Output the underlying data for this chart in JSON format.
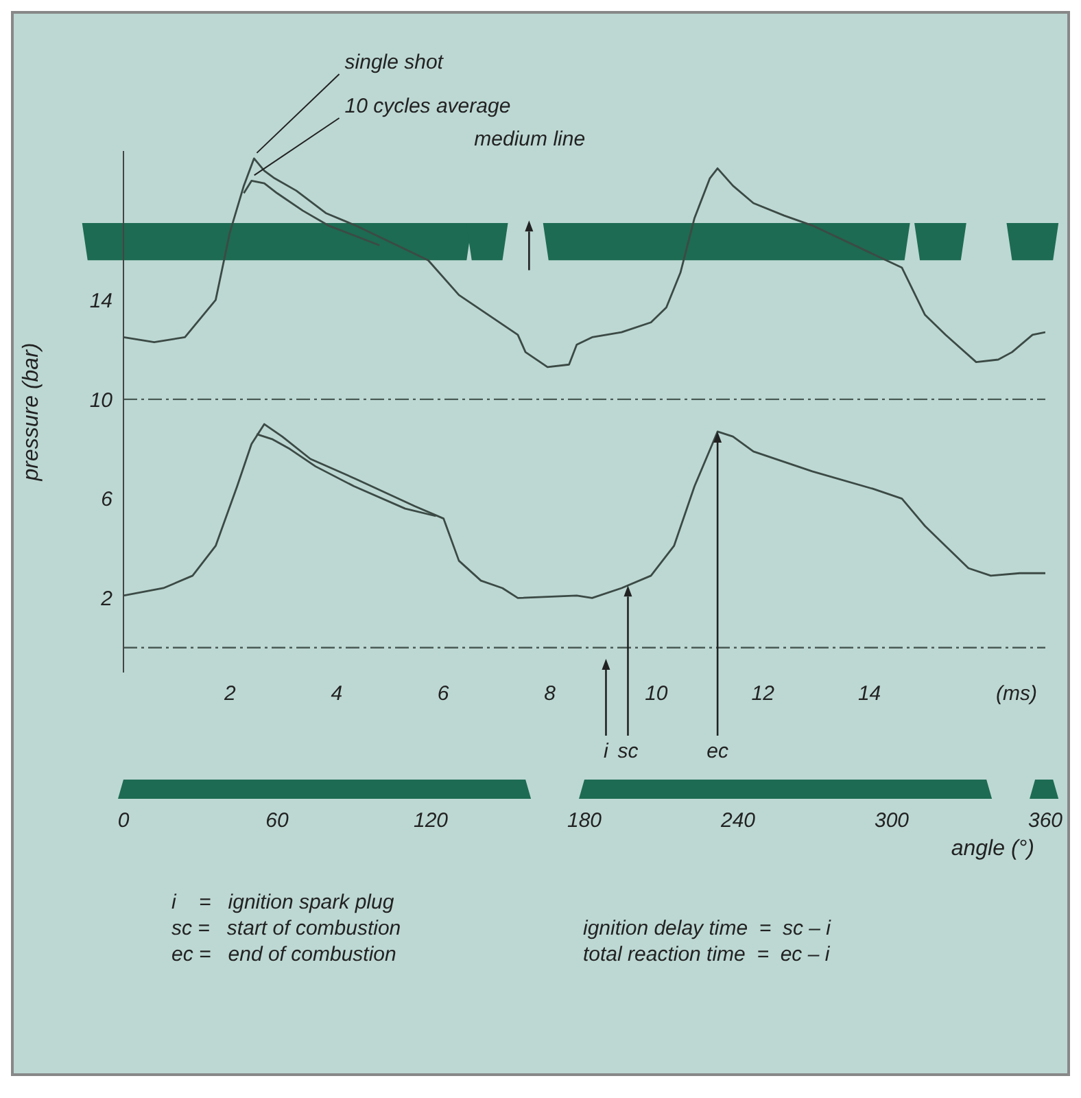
{
  "chart_data": {
    "type": "line",
    "ylabel": "pressure (bar)",
    "xlabel": "angle (°)",
    "x2label": "(ms)",
    "xlim": [
      0,
      360
    ],
    "xticks": [
      0,
      60,
      120,
      180,
      240,
      300,
      360
    ],
    "x2lim": [
      0,
      17.3
    ],
    "x2ticks": [
      2,
      4,
      6,
      8,
      10,
      12,
      14
    ],
    "ylim": [
      -1,
      20
    ],
    "yticks": [
      14,
      10,
      6,
      2
    ],
    "grid": false,
    "legend": false,
    "marker": "none",
    "line_style": "solid",
    "ref_lines": [
      {
        "axis": "y",
        "value": 10,
        "line_style": "dashed",
        "color": "#4a5a55"
      },
      {
        "axis": "y",
        "value": 0,
        "line_style": "dashed",
        "color": "#4a5a55"
      }
    ],
    "series": [
      {
        "name": "single shot",
        "color": "#3c4a45",
        "x": [
          0,
          12,
          24,
          36,
          41.5,
          47,
          51,
          55,
          59,
          67.5,
          79,
          90.6,
          119,
          131,
          142.5,
          154,
          157,
          165.6,
          174,
          177,
          183,
          194.5,
          206,
          212,
          217.5,
          223,
          229,
          232,
          238,
          246,
          258,
          269,
          304,
          313,
          321,
          333,
          341.6,
          347,
          355,
          360
        ],
        "values": [
          12.5,
          12.3,
          12.5,
          14.0,
          16.7,
          18.6,
          19.7,
          19.2,
          18.9,
          18.4,
          17.5,
          17.0,
          15.6,
          14.2,
          13.4,
          12.6,
          11.9,
          11.3,
          11.4,
          12.2,
          12.5,
          12.7,
          13.1,
          13.7,
          15.1,
          17.3,
          18.9,
          19.3,
          18.6,
          17.9,
          17.4,
          17.0,
          15.3,
          13.4,
          12.6,
          11.5,
          11.6,
          11.9,
          12.6,
          12.7
        ]
      },
      {
        "name": "10 cycles average",
        "color": "#3c4a45",
        "x": [
          47,
          50,
          55,
          60,
          70,
          80,
          90,
          100
        ],
        "values": [
          18.3,
          18.8,
          18.7,
          18.3,
          17.6,
          17.0,
          16.6,
          16.2
        ]
      },
      {
        "color": "#3c4a45",
        "x": [
          0,
          15.6,
          27,
          36,
          44.4,
          50,
          55,
          62,
          73,
          90.6,
          113.7,
          125,
          131,
          139.6,
          148,
          154,
          177,
          183,
          194.5,
          206,
          215,
          223,
          232,
          238,
          246,
          269,
          292.6,
          304,
          313,
          321,
          330,
          338.7,
          350,
          360
        ],
        "values": [
          2.1,
          2.4,
          2.9,
          4.1,
          6.5,
          8.2,
          9.0,
          8.5,
          7.6,
          6.8,
          5.7,
          5.2,
          3.5,
          2.7,
          2.4,
          2.0,
          2.1,
          2.0,
          2.4,
          2.9,
          4.1,
          6.5,
          8.7,
          8.5,
          7.9,
          7.1,
          6.4,
          6.0,
          4.9,
          4.1,
          3.2,
          2.9,
          3.0,
          3.0
        ]
      },
      {
        "color": "#3c4a45",
        "x": [
          52,
          58,
          65,
          75,
          90,
          110,
          122
        ],
        "values": [
          8.6,
          8.4,
          8.0,
          7.3,
          6.5,
          5.6,
          5.3
        ]
      }
    ],
    "annotations": [
      "medium line",
      "i",
      {
        "text": "sc",
        "x": 197,
        "y": 2.5
      },
      {
        "text": "ec",
        "x": 232,
        "y": 8.7
      },
      "i    =   ignition spark plug",
      "sc =   start of combustion",
      "ec =   end of combustion",
      "ignition delay time  =  sc – i",
      "total reaction time  =  ec – i"
    ]
  }
}
